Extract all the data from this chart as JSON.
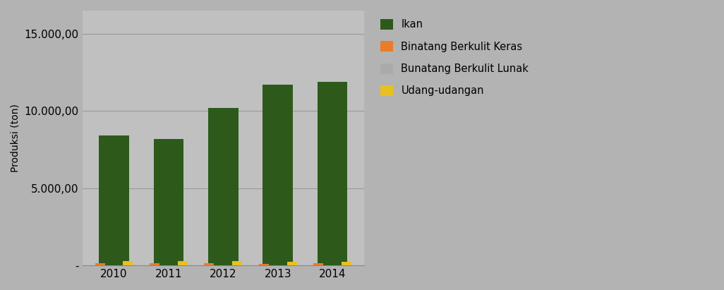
{
  "years": [
    "2010",
    "2011",
    "2012",
    "2013",
    "2014"
  ],
  "ikan": [
    8400,
    8200,
    10200,
    11700,
    11900
  ],
  "binatang_berkulit_keras": [
    150,
    140,
    130,
    120,
    130
  ],
  "bunatang_berkulit_lunak": [
    0,
    0,
    0,
    0,
    0
  ],
  "udang_udangan": [
    280,
    290,
    260,
    250,
    240
  ],
  "ikan_color": "#2d5a1b",
  "keras_color": "#e87c2b",
  "lunak_color": "#aaaaaa",
  "udang_color": "#e8c020",
  "bg_color": "#b3b3b3",
  "plot_bg_color": "#c0c0c0",
  "ylabel": "Produksi (ton)",
  "ylim_max": 16500,
  "yticks": [
    0,
    5000,
    10000,
    15000
  ],
  "legend_labels": [
    "Ikan",
    "Binatang Berkulit Keras",
    "Bunatang Berkulit Lunak",
    "Udang-udangan"
  ],
  "bar_width": 0.55,
  "small_bar_width": 0.18,
  "grid_color": "#999999",
  "tick_label_fontsize": 11,
  "ylabel_fontsize": 10
}
